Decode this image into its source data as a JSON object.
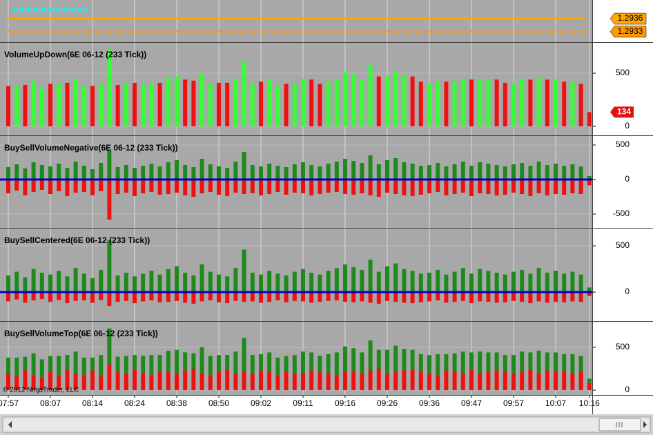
{
  "chart_data": [
    {
      "type": "price",
      "ylim": [
        1.29306,
        1.29403
      ],
      "lines": [
        {
          "value": 1.29381,
          "color": "#00ffff",
          "style": "dotted",
          "tagged": false
        },
        {
          "value": 1.2936,
          "color": "#ffa500",
          "style": "solid",
          "tagged": true
        },
        {
          "value": 1.2933,
          "color": "#ff9900",
          "style": "dashdot",
          "tagged": true
        }
      ]
    },
    {
      "type": "bar",
      "title": "VolumeUpDown(6E 06-12 (233 Tick))",
      "ylim": [
        -84,
        786
      ],
      "yticks": [
        0,
        500
      ],
      "value_tag": 134,
      "tag_color": "#e01010",
      "series": [
        {
          "color": "#33ff33",
          "values": [
            null,
            380,
            null,
            430,
            360,
            null,
            400,
            null,
            450,
            380,
            null,
            410,
            720,
            null,
            400,
            null,
            400,
            410,
            null,
            460,
            470,
            null,
            null,
            500,
            400,
            null,
            null,
            450,
            610,
            410,
            null,
            440,
            380,
            null,
            410,
            450,
            null,
            null,
            420,
            440,
            510,
            490,
            440,
            580,
            null,
            470,
            520,
            480,
            null,
            null,
            410,
            420,
            null,
            430,
            450,
            null,
            450,
            440,
            null,
            null,
            410,
            450,
            null,
            460,
            null,
            440,
            null,
            420,
            null,
            null
          ]
        },
        {
          "color": "#ee1111",
          "values": [
            380,
            null,
            390,
            null,
            null,
            400,
            null,
            410,
            null,
            null,
            380,
            null,
            null,
            390,
            null,
            410,
            null,
            null,
            410,
            null,
            null,
            440,
            430,
            null,
            null,
            410,
            410,
            null,
            null,
            null,
            420,
            null,
            null,
            400,
            null,
            null,
            440,
            400,
            null,
            null,
            null,
            null,
            null,
            null,
            470,
            null,
            null,
            null,
            470,
            420,
            null,
            null,
            420,
            null,
            null,
            440,
            null,
            null,
            440,
            410,
            null,
            null,
            440,
            null,
            440,
            null,
            420,
            null,
            400,
            134
          ]
        }
      ]
    },
    {
      "type": "bar",
      "title": "BuySellVolumeNegative(6E 06-12 (233 Tick))",
      "ylim": [
        -700,
        630
      ],
      "yticks": [
        -500,
        0,
        500
      ],
      "zero_line": "#0000cc",
      "series": [
        {
          "color": "#1e8a1e",
          "values": [
            180,
            220,
            160,
            250,
            210,
            190,
            230,
            170,
            260,
            200,
            150,
            240,
            420,
            180,
            210,
            170,
            200,
            230,
            190,
            250,
            280,
            210,
            180,
            300,
            220,
            190,
            170,
            260,
            400,
            210,
            190,
            230,
            200,
            180,
            220,
            250,
            210,
            190,
            230,
            260,
            300,
            270,
            240,
            350,
            220,
            280,
            310,
            250,
            230,
            200,
            210,
            240,
            190,
            220,
            260,
            200,
            250,
            230,
            210,
            190,
            220,
            240,
            200,
            260,
            210,
            230,
            200,
            220,
            190,
            50
          ]
        },
        {
          "color": "#ee1111",
          "values": [
            -200,
            -160,
            -230,
            -180,
            -150,
            -210,
            -170,
            -240,
            -190,
            -180,
            -230,
            -170,
            -580,
            -210,
            -190,
            -240,
            -200,
            -180,
            -220,
            -210,
            -190,
            -230,
            -250,
            -200,
            -180,
            -220,
            -240,
            -190,
            -210,
            -200,
            -230,
            -210,
            -180,
            -220,
            -190,
            -200,
            -230,
            -210,
            -190,
            -180,
            -210,
            -220,
            -200,
            -230,
            -250,
            -190,
            -210,
            -230,
            -240,
            -220,
            -200,
            -180,
            -230,
            -210,
            -190,
            -240,
            -200,
            -210,
            -230,
            -220,
            -190,
            -210,
            -240,
            -200,
            -230,
            -210,
            -220,
            -200,
            -210,
            -84
          ]
        }
      ]
    },
    {
      "type": "bar",
      "title": "BuySellCentered(6E 06-12 (233 Tick))",
      "ylim": [
        -313,
        687
      ],
      "yticks": [
        0,
        500
      ],
      "zero_line": "#0000cc",
      "series": [
        {
          "color": "#1e8a1e",
          "values": [
            180,
            220,
            160,
            250,
            210,
            190,
            230,
            170,
            260,
            200,
            150,
            240,
            560,
            180,
            210,
            170,
            200,
            230,
            190,
            250,
            280,
            210,
            180,
            300,
            220,
            190,
            170,
            260,
            460,
            210,
            190,
            230,
            200,
            180,
            220,
            250,
            210,
            190,
            230,
            260,
            300,
            270,
            240,
            350,
            220,
            280,
            310,
            250,
            230,
            200,
            210,
            240,
            190,
            220,
            260,
            200,
            250,
            230,
            210,
            190,
            220,
            240,
            200,
            260,
            210,
            230,
            200,
            220,
            190,
            50
          ]
        },
        {
          "color": "#ee1111",
          "values": [
            -100,
            -80,
            -115,
            -90,
            -75,
            -105,
            -85,
            -120,
            -95,
            -90,
            -115,
            -85,
            -150,
            -105,
            -95,
            -120,
            -100,
            -90,
            -110,
            -105,
            -95,
            -115,
            -125,
            -100,
            -90,
            -110,
            -120,
            -95,
            -105,
            -100,
            -115,
            -105,
            -90,
            -110,
            -95,
            -100,
            -115,
            -105,
            -95,
            -90,
            -105,
            -110,
            -100,
            -115,
            -125,
            -95,
            -105,
            -115,
            -120,
            -110,
            -100,
            -90,
            -115,
            -105,
            -95,
            -120,
            -100,
            -105,
            -115,
            -110,
            -95,
            -105,
            -120,
            -100,
            -115,
            -105,
            -110,
            -100,
            -105,
            -42
          ]
        }
      ]
    },
    {
      "type": "stacked_bar",
      "title": "BuySellVolumeTop(6E 06-12 (233 Tick))",
      "ylim": [
        -56,
        798
      ],
      "yticks": [
        0,
        500
      ],
      "annotation": "© 2012 NinjaTrader, LLC",
      "categories": [
        "07:57",
        null,
        null,
        null,
        null,
        "08:07",
        null,
        null,
        null,
        null,
        "08:14",
        null,
        null,
        null,
        null,
        "08:24",
        null,
        null,
        null,
        null,
        "08:38",
        null,
        null,
        null,
        null,
        "08:50",
        null,
        null,
        null,
        null,
        "09:02",
        null,
        null,
        null,
        null,
        "09:11",
        null,
        null,
        null,
        null,
        "09:16",
        null,
        null,
        null,
        null,
        "09:26",
        null,
        null,
        null,
        null,
        "09:36",
        null,
        null,
        null,
        null,
        "09:47",
        null,
        null,
        null,
        null,
        "09:57",
        null,
        null,
        null,
        null,
        "10:07",
        null,
        null,
        null,
        "10:16"
      ],
      "series": [
        {
          "color": "#ee1111",
          "values": [
            200,
            160,
            230,
            180,
            150,
            210,
            170,
            240,
            190,
            180,
            230,
            170,
            300,
            210,
            190,
            240,
            200,
            180,
            220,
            210,
            190,
            230,
            250,
            200,
            180,
            220,
            240,
            190,
            210,
            200,
            230,
            210,
            180,
            220,
            190,
            200,
            230,
            210,
            190,
            180,
            210,
            220,
            200,
            230,
            250,
            190,
            210,
            230,
            240,
            220,
            200,
            180,
            230,
            210,
            190,
            240,
            200,
            210,
            230,
            220,
            190,
            210,
            240,
            200,
            230,
            210,
            220,
            200,
            210,
            84
          ]
        },
        {
          "color": "#1e8a1e",
          "values": [
            180,
            220,
            160,
            250,
            210,
            190,
            230,
            170,
            260,
            200,
            150,
            240,
            420,
            180,
            210,
            170,
            200,
            230,
            190,
            250,
            280,
            210,
            180,
            300,
            220,
            190,
            170,
            260,
            400,
            210,
            190,
            230,
            200,
            180,
            220,
            250,
            210,
            190,
            230,
            260,
            300,
            270,
            240,
            350,
            220,
            280,
            310,
            250,
            230,
            200,
            210,
            240,
            190,
            220,
            260,
            200,
            250,
            230,
            210,
            190,
            220,
            240,
            200,
            260,
            210,
            230,
            200,
            220,
            190,
            50
          ]
        }
      ]
    }
  ]
}
